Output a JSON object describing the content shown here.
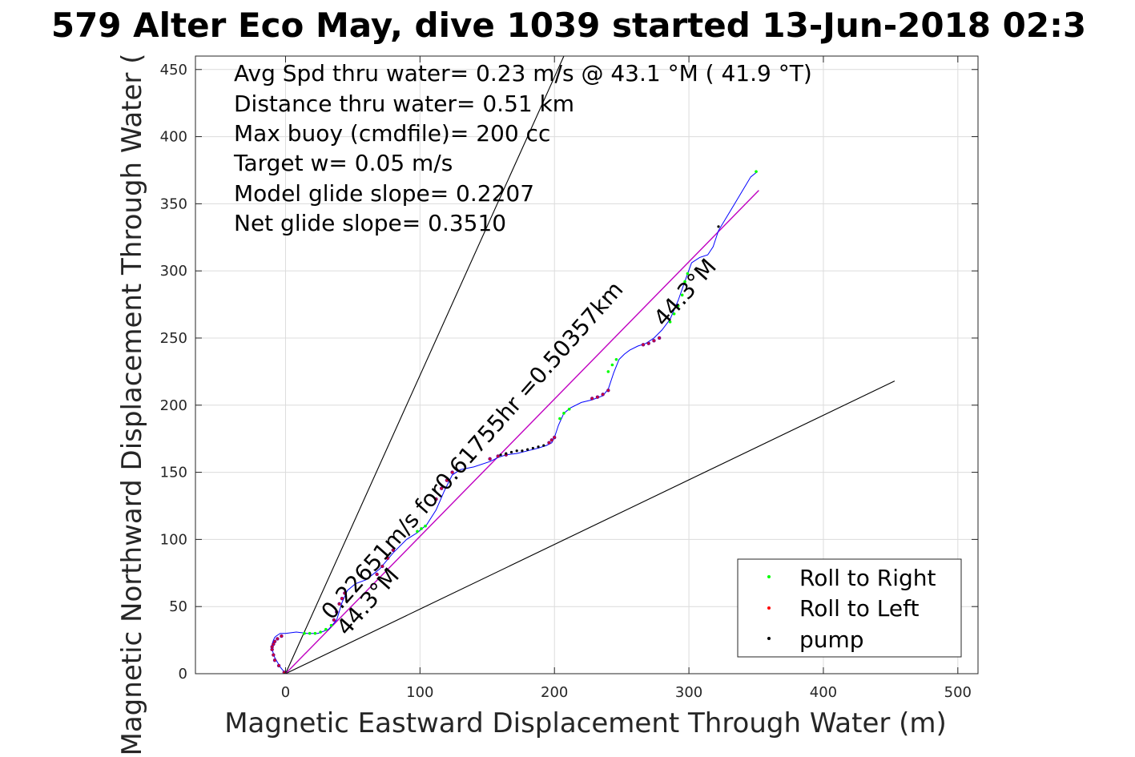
{
  "chart_data": {
    "type": "line",
    "title": "579 Alter Eco May, dive 1039 started 13-Jun-2018 02:3",
    "xlabel": "Magnetic Eastward Displacement Through Water (m)",
    "ylabel": "Magnetic Northward Displacement Through Water (",
    "xlim": [
      -67,
      515
    ],
    "ylim": [
      0,
      460
    ],
    "xticks": [
      0,
      100,
      200,
      300,
      400,
      500
    ],
    "yticks": [
      0,
      50,
      100,
      150,
      200,
      250,
      300,
      350,
      400,
      450
    ],
    "xtick_labels": [
      "0",
      "100",
      "200",
      "300",
      "400",
      "500"
    ],
    "ytick_labels": [
      "0",
      "50",
      "100",
      "150",
      "200",
      "250",
      "300",
      "350",
      "400",
      "450"
    ],
    "grid": true,
    "legend_position": "bottom-right",
    "legend": [
      {
        "label": "Roll to Right",
        "color": "#00ff00"
      },
      {
        "label": "Roll to Left",
        "color": "#ff0000"
      },
      {
        "label": "pump",
        "color": "#000000"
      }
    ],
    "annotations": [
      "Avg Spd thru water=  0.23 m/s @  43.1 °M ( 41.9 °T)",
      "Distance thru water=  0.51 km",
      "Max buoy (cmdfile)= 200 cc",
      "Target w= 0.05 m/s",
      "Model glide slope= 0.2207",
      "Net glide slope= 0.3510"
    ],
    "slope_labels": {
      "main": "0.22651m/s for0.61755hr =0.50357km",
      "heading_start": "44.3°M",
      "heading_end": "44.3°M"
    },
    "guide_lines": [
      {
        "name": "steep-bound",
        "x": [
          0,
          207
        ],
        "y": [
          0,
          460
        ]
      },
      {
        "name": "shallow-bound",
        "x": [
          0,
          453
        ],
        "y": [
          0,
          218
        ]
      },
      {
        "name": "mean-track",
        "x": [
          0,
          352
        ],
        "y": [
          0,
          360
        ]
      }
    ],
    "track": {
      "x": [
        0,
        -4,
        -8,
        -10,
        -10,
        -9,
        -8,
        -7,
        -4,
        0,
        8,
        16,
        24,
        32,
        38,
        42,
        46,
        52,
        60,
        70,
        80,
        90,
        98,
        105,
        112,
        118,
        124,
        130,
        140,
        152,
        158,
        164,
        172,
        180,
        188,
        194,
        198,
        200,
        203,
        207,
        212,
        220,
        228,
        236,
        240,
        244,
        248,
        252,
        256,
        262,
        268,
        274,
        280,
        286,
        292,
        298,
        302,
        308,
        314,
        318,
        322,
        328,
        334,
        340,
        346,
        351
      ],
      "y": [
        0,
        5,
        12,
        18,
        22,
        25,
        27,
        28,
        30,
        30,
        31,
        30,
        30,
        33,
        40,
        53,
        62,
        67,
        70,
        78,
        90,
        100,
        105,
        111,
        122,
        136,
        148,
        152,
        154,
        158,
        161,
        163,
        164,
        166,
        168,
        170,
        172,
        176,
        185,
        194,
        198,
        202,
        204,
        207,
        212,
        224,
        234,
        238,
        241,
        244,
        246,
        250,
        256,
        264,
        278,
        295,
        306,
        310,
        312,
        318,
        330,
        340,
        350,
        360,
        370,
        374
      ]
    },
    "markers": {
      "roll_right": {
        "x": [
          14,
          18,
          22,
          26,
          30,
          34,
          98,
          101,
          104,
          204,
          207,
          211,
          240,
          243,
          246,
          286,
          289,
          292,
          295,
          297,
          299,
          350
        ],
        "y": [
          30,
          30,
          30,
          31,
          33,
          36,
          106,
          108,
          110,
          190,
          194,
          197,
          225,
          230,
          234,
          262,
          268,
          274,
          282,
          292,
          298,
          374
        ]
      },
      "roll_left": {
        "x": [
          -1,
          -5,
          -8,
          -9,
          -10,
          -10,
          -9,
          -8,
          -6,
          -3,
          0,
          36,
          38,
          40,
          42,
          44,
          68,
          72,
          76,
          80,
          112,
          116,
          120,
          124,
          152,
          158,
          164,
          196,
          198,
          200,
          228,
          232,
          236,
          240,
          266,
          270,
          274,
          278
        ],
        "y": [
          1,
          6,
          10,
          14,
          18,
          20,
          22,
          24,
          26,
          28,
          0,
          40,
          46,
          52,
          56,
          60,
          74,
          80,
          86,
          92,
          130,
          138,
          144,
          150,
          160,
          162,
          163,
          172,
          174,
          176,
          205,
          206,
          208,
          211,
          245,
          246,
          248,
          250
        ]
      },
      "pump": {
        "x": [
          0,
          160,
          164,
          168,
          172,
          176,
          180,
          184,
          188,
          192,
          322
        ],
        "y": [
          0,
          163,
          164,
          165,
          166,
          166,
          167,
          168,
          169,
          170,
          333
        ]
      }
    },
    "colors": {
      "track": "#0000ff",
      "mean_track": "#c000c0",
      "guide": "#000000",
      "roll_right": "#00ff00",
      "roll_left": "#ff0000",
      "pump": "#000000",
      "slope_markers": "#800080"
    }
  }
}
